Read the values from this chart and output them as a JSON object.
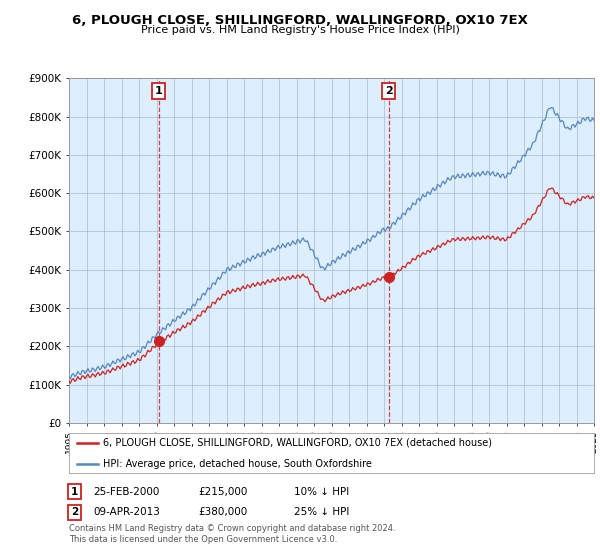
{
  "title": "6, PLOUGH CLOSE, SHILLINGFORD, WALLINGFORD, OX10 7EX",
  "subtitle": "Price paid vs. HM Land Registry's House Price Index (HPI)",
  "legend_line1": "6, PLOUGH CLOSE, SHILLINGFORD, WALLINGFORD, OX10 7EX (detached house)",
  "legend_line2": "HPI: Average price, detached house, South Oxfordshire",
  "annotation1_date": "25-FEB-2000",
  "annotation1_price": "£215,000",
  "annotation1_hpi": "10% ↓ HPI",
  "annotation2_date": "09-APR-2013",
  "annotation2_price": "£380,000",
  "annotation2_hpi": "25% ↓ HPI",
  "footer_line1": "Contains HM Land Registry data © Crown copyright and database right 2024.",
  "footer_line2": "This data is licensed under the Open Government Licence v3.0.",
  "hpi_color": "#5588bb",
  "house_color": "#cc2222",
  "bg_color": "#ddeeff",
  "grid_color": "#aabbcc",
  "ylim": [
    0,
    900000
  ],
  "ytick_vals": [
    0,
    100000,
    200000,
    300000,
    400000,
    500000,
    600000,
    700000,
    800000,
    900000
  ],
  "ytick_labels": [
    "£0",
    "£100K",
    "£200K",
    "£300K",
    "£400K",
    "£500K",
    "£600K",
    "£700K",
    "£800K",
    "£900K"
  ],
  "year_start": 1995,
  "year_end": 2025,
  "purchase1_year": 2000.12,
  "purchase1_value": 215000,
  "purchase2_year": 2013.27,
  "purchase2_value": 380000,
  "hpi_keypoints_years": [
    1995.0,
    1997.0,
    1999.0,
    2000.12,
    2002.0,
    2004.0,
    2007.0,
    2008.5,
    2009.5,
    2010.5,
    2013.0,
    2013.27,
    2015.0,
    2017.0,
    2019.0,
    2020.0,
    2021.5,
    2022.5,
    2023.5,
    2024.5,
    2025.0
  ],
  "hpi_keypoints_vals": [
    120000,
    148000,
    190000,
    240000,
    305000,
    405000,
    465000,
    485000,
    405000,
    435000,
    505000,
    508000,
    585000,
    645000,
    655000,
    645000,
    725000,
    825000,
    765000,
    795000,
    790000
  ]
}
